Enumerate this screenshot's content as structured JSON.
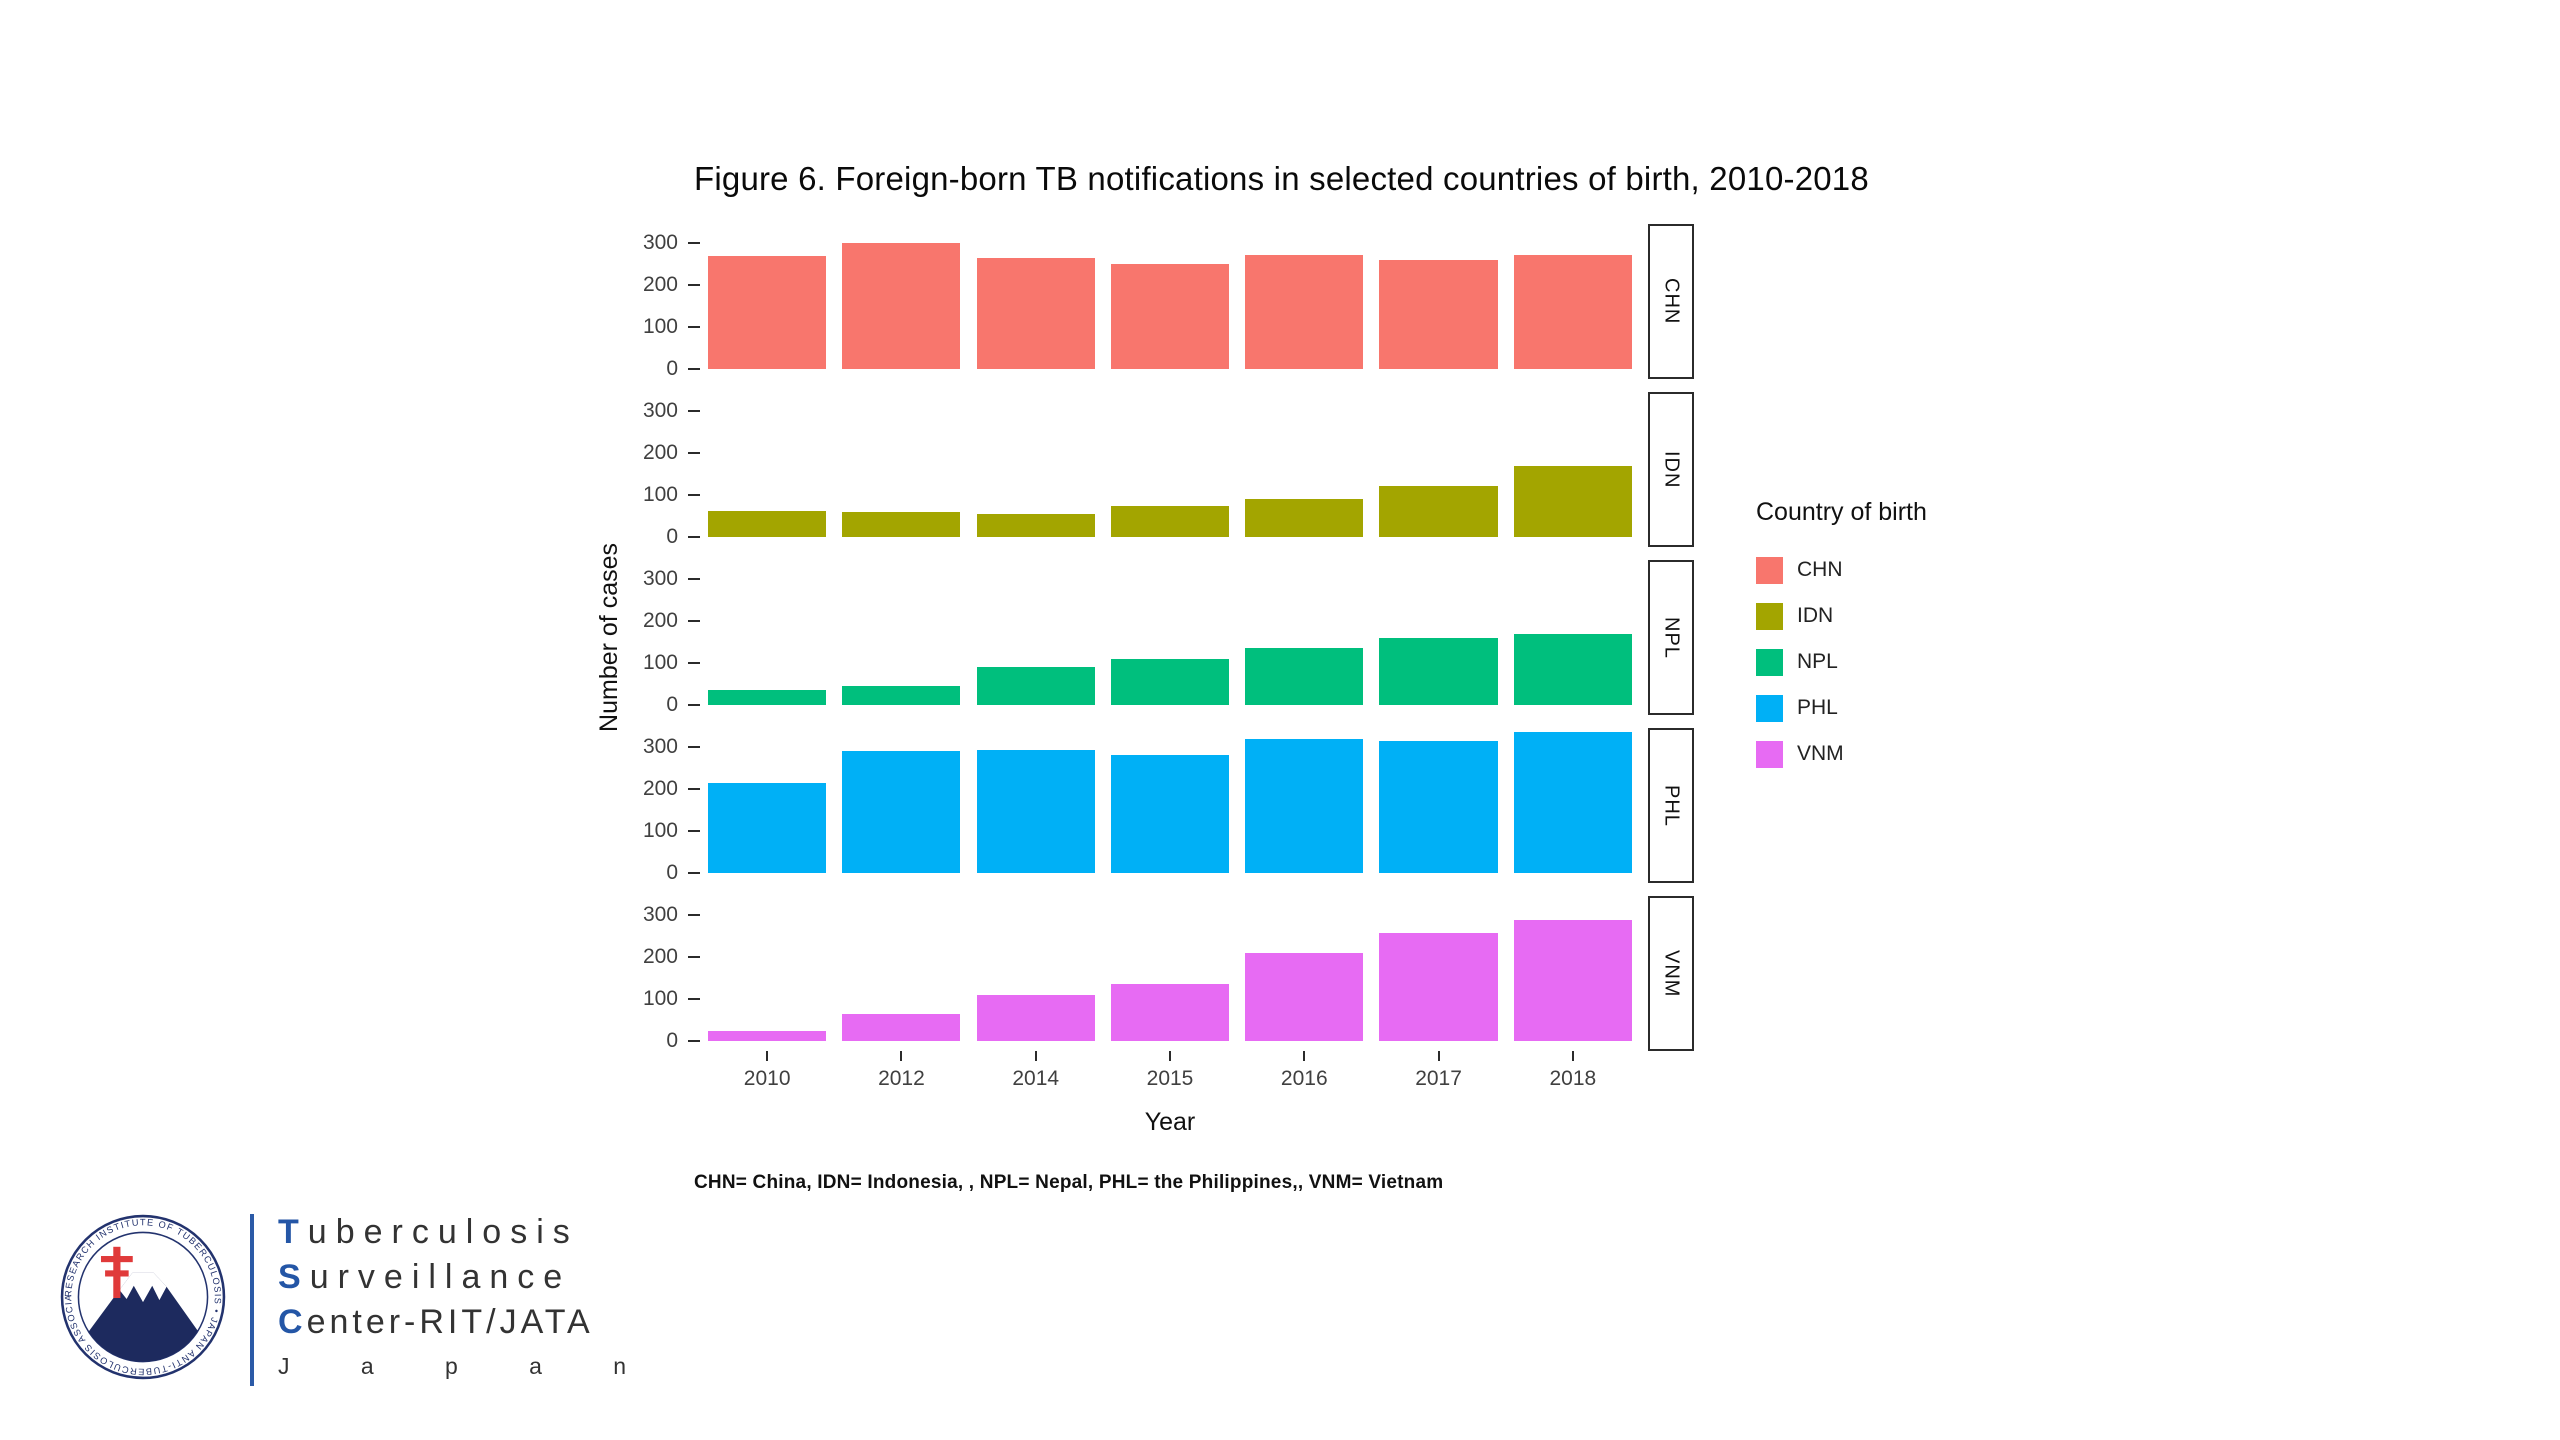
{
  "title": "Figure 6. Foreign-born TB notifications in selected countries of birth, 2010-2018",
  "chart_data": {
    "type": "bar",
    "faceted": true,
    "x": [
      "2010",
      "2012",
      "2014",
      "2015",
      "2016",
      "2017",
      "2018"
    ],
    "xlabel": "Year",
    "ylabel": "Number of cases",
    "yticks": [
      0,
      100,
      200,
      300
    ],
    "ylim": [
      0,
      355
    ],
    "legend_title": "Country of birth",
    "legend_position": "right",
    "grid": false,
    "series": [
      {
        "name": "CHN",
        "color": "#F8766D",
        "values": [
          270,
          300,
          265,
          250,
          272,
          260,
          272
        ]
      },
      {
        "name": "IDN",
        "color": "#A3A500",
        "values": [
          62,
          60,
          55,
          75,
          90,
          122,
          170
        ]
      },
      {
        "name": "NPL",
        "color": "#00BF7D",
        "values": [
          35,
          45,
          90,
          110,
          135,
          160,
          170
        ]
      },
      {
        "name": "PHL",
        "color": "#00B0F6",
        "values": [
          215,
          290,
          292,
          280,
          320,
          315,
          335
        ]
      },
      {
        "name": "VNM",
        "color": "#E76BF3",
        "values": [
          25,
          65,
          110,
          135,
          210,
          258,
          288
        ]
      }
    ]
  },
  "footnote": "CHN= China, IDN= Indonesia, , NPL= Nepal, PHL= the Philippines,, VNM= Vietnam",
  "logo": {
    "ring_text": "RESEARCH INSTITUTE OF TUBERCULOSIS • JAPAN ANTI-TUBERCULOSIS ASSOCIATION",
    "line1": "Tuberculosis",
    "line2": "Surveillance",
    "line3": "Center-RIT/JATA",
    "line4": "Japan",
    "accent_color": "#2456a6"
  }
}
